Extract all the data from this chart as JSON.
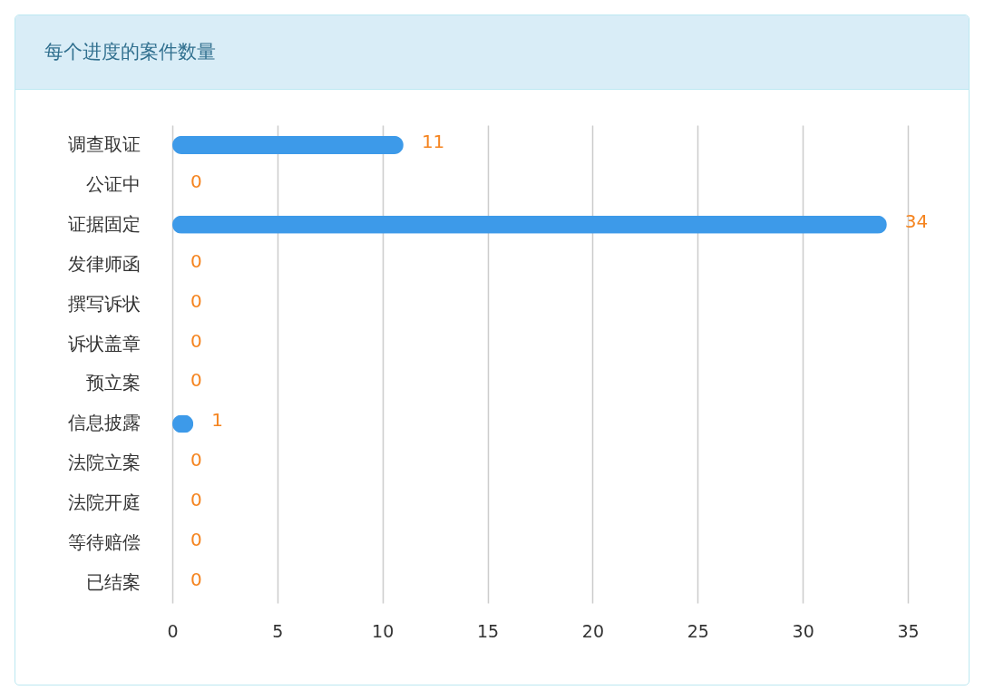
{
  "chart_data": {
    "type": "bar",
    "orientation": "horizontal",
    "title": "每个进度的案件数量",
    "categories": [
      "调查取证",
      "公证中",
      "证据固定",
      "发律师函",
      "撰写诉状",
      "诉状盖章",
      "预立案",
      "信息披露",
      "法院立案",
      "法院开庭",
      "等待赔偿",
      "已结案"
    ],
    "values": [
      11,
      0,
      34,
      0,
      0,
      0,
      0,
      1,
      0,
      0,
      0,
      0
    ],
    "color": "#3d9ae9",
    "xlim": [
      0,
      35
    ],
    "xticks": [
      0,
      5,
      10,
      15,
      20,
      25,
      30,
      35
    ],
    "grid": "x",
    "data_labels": true
  }
}
